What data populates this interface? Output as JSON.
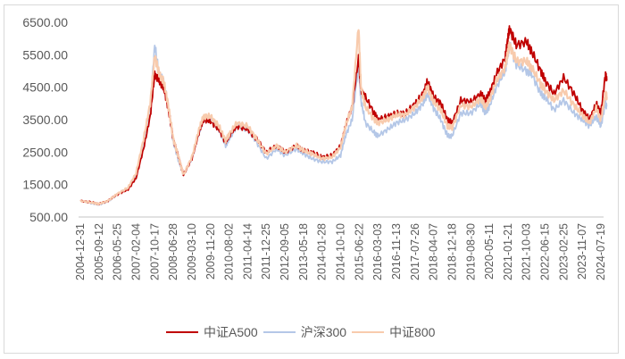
{
  "chart_data": {
    "type": "line",
    "title": "",
    "xlabel": "",
    "ylabel": "",
    "ylim": [
      500,
      6500
    ],
    "yticks": [
      "500.00",
      "1500.00",
      "2500.00",
      "3500.00",
      "4500.00",
      "5500.00",
      "6500.00"
    ],
    "xticks": [
      "2004-12-31",
      "2005-09-12",
      "2006-05-25",
      "2007-02-04",
      "2007-10-17",
      "2008-06-28",
      "2009-03-10",
      "2009-11-20",
      "2010-08-02",
      "2011-04-14",
      "2011-12-25",
      "2012-09-05",
      "2013-05-18",
      "2014-01-28",
      "2014-10-10",
      "2015-06-22",
      "2016-03-03",
      "2016-11-13",
      "2017-07-26",
      "2018-04-07",
      "2018-12-18",
      "2019-08-30",
      "2020-05-11",
      "2021-01-21",
      "2021-10-03",
      "2022-06-15",
      "2023-02-25",
      "2023-11-07",
      "2024-07-19"
    ],
    "grid": false,
    "legend_position": "bottom",
    "x": [
      "2004-12-31",
      "2005-06",
      "2005-09-12",
      "2006-01",
      "2006-05-25",
      "2006-10",
      "2007-02-04",
      "2007-05",
      "2007-08",
      "2007-10-17",
      "2007-12",
      "2008-02",
      "2008-04",
      "2008-06-28",
      "2008-09",
      "2008-11",
      "2009-03-10",
      "2009-06",
      "2009-08",
      "2009-11-20",
      "2010-03",
      "2010-06",
      "2010-08-02",
      "2010-11",
      "2011-04-14",
      "2011-08",
      "2011-12-25",
      "2012-05",
      "2012-09-05",
      "2013-02",
      "2013-05-18",
      "2013-09",
      "2014-01-28",
      "2014-06",
      "2014-10-10",
      "2014-12",
      "2015-03",
      "2015-06-12",
      "2015-07",
      "2015-09",
      "2016-01",
      "2016-03-03",
      "2016-07",
      "2016-11-13",
      "2017-03",
      "2017-07-26",
      "2017-11",
      "2018-01",
      "2018-04-07",
      "2018-07",
      "2018-10",
      "2018-12-18",
      "2019-04",
      "2019-08-30",
      "2020-01",
      "2020-03",
      "2020-05-11",
      "2020-08",
      "2020-12",
      "2021-01-21",
      "2021-02",
      "2021-05",
      "2021-10-03",
      "2021-12",
      "2022-04",
      "2022-06-15",
      "2022-10",
      "2023-02-25",
      "2023-07",
      "2023-11-07",
      "2024-02",
      "2024-05",
      "2024-07-19",
      "2024-09-20",
      "2024-10-08"
    ],
    "series": [
      {
        "name": "中证A500",
        "color": "#c00000",
        "values": [
          1000,
          950,
          900,
          1000,
          1200,
          1350,
          1700,
          2600,
          3600,
          4900,
          4700,
          4500,
          3900,
          2900,
          2300,
          1800,
          2300,
          3100,
          3500,
          3450,
          3200,
          2800,
          3000,
          3300,
          3200,
          2900,
          2500,
          2700,
          2500,
          2700,
          2550,
          2500,
          2350,
          2400,
          2700,
          3300,
          3900,
          5400,
          4400,
          4200,
          3700,
          3500,
          3600,
          3700,
          3700,
          4000,
          4300,
          4700,
          4200,
          4000,
          3500,
          3400,
          4100,
          4050,
          4300,
          4100,
          4300,
          4900,
          5400,
          6000,
          6300,
          5800,
          5900,
          5600,
          5000,
          4700,
          4300,
          4800,
          4300,
          3800,
          3500,
          4000,
          3700,
          4900,
          4700
        ]
      },
      {
        "name": "沪深300",
        "color": "#b4c7e7",
        "values": [
          1000,
          920,
          880,
          980,
          1200,
          1400,
          1800,
          2800,
          3900,
          5800,
          4900,
          4700,
          4000,
          2800,
          2200,
          1800,
          2300,
          3100,
          3500,
          3500,
          3200,
          2700,
          2900,
          3300,
          3200,
          2800,
          2300,
          2600,
          2400,
          2600,
          2450,
          2300,
          2200,
          2200,
          2400,
          3000,
          3500,
          5200,
          4100,
          3400,
          3100,
          3000,
          3200,
          3400,
          3500,
          3700,
          4000,
          4300,
          3850,
          3500,
          3000,
          3000,
          3700,
          3700,
          4000,
          3700,
          3900,
          4500,
          5000,
          5500,
          5800,
          5200,
          5000,
          4900,
          4300,
          4200,
          3800,
          4100,
          3700,
          3500,
          3300,
          3600,
          3300,
          4000,
          3900
        ]
      },
      {
        "name": "中证800",
        "color": "#f8cbad",
        "values": [
          1000,
          940,
          900,
          1000,
          1220,
          1400,
          1850,
          2900,
          4000,
          5500,
          4900,
          4700,
          4000,
          2900,
          2300,
          1800,
          2350,
          3200,
          3600,
          3600,
          3300,
          2850,
          3050,
          3400,
          3300,
          2900,
          2450,
          2700,
          2500,
          2700,
          2550,
          2450,
          2300,
          2350,
          2650,
          3300,
          3900,
          6400,
          4500,
          3900,
          3500,
          3400,
          3500,
          3650,
          3650,
          3900,
          4200,
          4500,
          4050,
          3800,
          3300,
          3250,
          3950,
          3900,
          4150,
          3900,
          4100,
          4700,
          5100,
          5600,
          5800,
          5300,
          5300,
          5100,
          4600,
          4400,
          4100,
          4400,
          3950,
          3650,
          3400,
          3850,
          3500,
          4300,
          4200
        ]
      }
    ]
  }
}
